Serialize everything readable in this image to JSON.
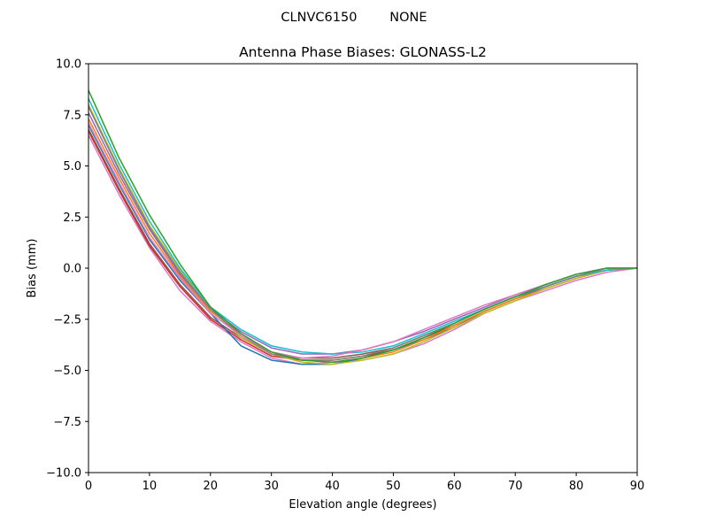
{
  "figure": {
    "suptitle": "CLNVC6150        NONE"
  },
  "chart_data": {
    "type": "line",
    "title": "Antenna Phase Biases: GLONASS-L2",
    "xlabel": "Elevation angle (degrees)",
    "ylabel": "Bias (mm)",
    "xlim": [
      0,
      90
    ],
    "ylim": [
      -10,
      10
    ],
    "xticks": [
      0,
      10,
      20,
      30,
      40,
      50,
      60,
      70,
      80,
      90
    ],
    "yticks": [
      10.0,
      7.5,
      5.0,
      2.5,
      0.0,
      -2.5,
      -5.0,
      -7.5,
      -10.0
    ],
    "xtick_labels": [
      "0",
      "10",
      "20",
      "30",
      "40",
      "50",
      "60",
      "70",
      "80",
      "90"
    ],
    "ytick_labels": [
      "10.0",
      "7.5",
      "5.0",
      "2.5",
      "0.0",
      "−2.5",
      "−5.0",
      "−7.5",
      "−10.0"
    ],
    "grid": false,
    "legend": "none",
    "x": [
      0,
      5,
      10,
      15,
      20,
      25,
      30,
      35,
      40,
      45,
      50,
      55,
      60,
      65,
      70,
      75,
      80,
      85,
      90
    ],
    "series": [
      {
        "color": "#e377c2",
        "values": [
          6.5,
          3.6,
          1.0,
          -1.1,
          -2.6,
          -3.6,
          -4.4,
          -4.7,
          -4.6,
          -4.5,
          -4.2,
          -3.7,
          -3.0,
          -2.2,
          -1.6,
          -1.1,
          -0.6,
          -0.2,
          0.0
        ]
      },
      {
        "color": "#d62728",
        "values": [
          6.7,
          3.8,
          1.1,
          -0.9,
          -2.5,
          -3.5,
          -4.3,
          -4.5,
          -4.5,
          -4.3,
          -4.0,
          -3.4,
          -2.8,
          -2.1,
          -1.5,
          -1.0,
          -0.5,
          -0.1,
          0.0
        ]
      },
      {
        "color": "#8c564b",
        "values": [
          6.8,
          3.9,
          1.2,
          -0.8,
          -2.4,
          -3.4,
          -4.2,
          -4.4,
          -4.4,
          -4.2,
          -3.9,
          -3.3,
          -2.7,
          -2.0,
          -1.4,
          -0.9,
          -0.4,
          -0.1,
          0.0
        ]
      },
      {
        "color": "#1f77b4",
        "values": [
          7.0,
          4.1,
          1.4,
          -0.6,
          -2.2,
          -3.8,
          -4.5,
          -4.7,
          -4.7,
          -4.4,
          -4.0,
          -3.5,
          -2.9,
          -2.1,
          -1.5,
          -0.9,
          -0.4,
          -0.1,
          0.0
        ]
      },
      {
        "color": "#ff7f0e",
        "values": [
          7.3,
          4.4,
          1.7,
          -0.4,
          -2.1,
          -3.2,
          -4.1,
          -4.5,
          -4.6,
          -4.4,
          -4.1,
          -3.5,
          -2.8,
          -2.1,
          -1.5,
          -1.0,
          -0.5,
          -0.1,
          0.0
        ]
      },
      {
        "color": "#9467bd",
        "values": [
          7.6,
          4.6,
          1.9,
          -0.3,
          -2.0,
          -3.1,
          -3.9,
          -4.2,
          -4.2,
          -4.0,
          -3.6,
          -3.1,
          -2.5,
          -1.9,
          -1.3,
          -0.8,
          -0.3,
          0.0,
          0.0
        ]
      },
      {
        "color": "#bcbd22",
        "values": [
          8.0,
          4.9,
          2.1,
          -0.1,
          -2.0,
          -3.4,
          -4.2,
          -4.6,
          -4.7,
          -4.5,
          -4.2,
          -3.6,
          -2.9,
          -2.2,
          -1.6,
          -1.0,
          -0.5,
          -0.1,
          0.0
        ]
      },
      {
        "color": "#17becf",
        "values": [
          8.3,
          5.1,
          2.3,
          0.0,
          -1.9,
          -3.0,
          -3.8,
          -4.1,
          -4.2,
          -4.1,
          -3.8,
          -3.2,
          -2.6,
          -2.0,
          -1.4,
          -0.9,
          -0.4,
          -0.1,
          0.0
        ]
      },
      {
        "color": "#7f7f7f",
        "values": [
          7.9,
          4.8,
          2.0,
          -0.2,
          -2.0,
          -3.3,
          -4.2,
          -4.5,
          -4.5,
          -4.3,
          -3.9,
          -3.3,
          -2.7,
          -2.0,
          -1.4,
          -0.9,
          -0.4,
          0.0,
          0.0
        ]
      },
      {
        "color": "#e377c2",
        "values": [
          7.1,
          4.2,
          1.5,
          -0.5,
          -2.2,
          -3.3,
          -4.1,
          -4.4,
          -4.3,
          -4.0,
          -3.6,
          -3.0,
          -2.4,
          -1.8,
          -1.3,
          -0.8,
          -0.3,
          0.0,
          0.0
        ]
      },
      {
        "color": "#2ca02c",
        "values": [
          8.7,
          5.4,
          2.6,
          0.2,
          -1.9,
          -3.2,
          -4.1,
          -4.5,
          -4.6,
          -4.4,
          -4.0,
          -3.4,
          -2.7,
          -2.0,
          -1.4,
          -0.8,
          -0.3,
          0.0,
          0.0
        ]
      }
    ]
  }
}
